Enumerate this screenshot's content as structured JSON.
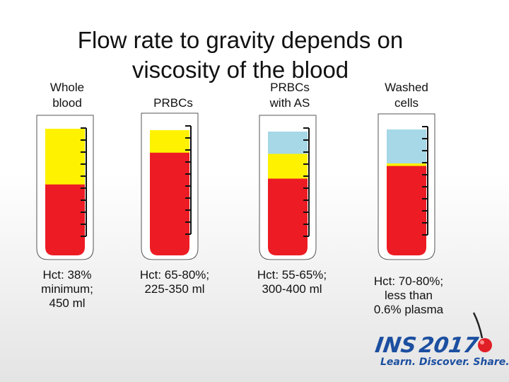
{
  "title_line1": "Flow rate to gravity depends on",
  "title_line2": "viscosity of the blood",
  "columns": [
    {
      "label_line1": "Whole",
      "label_line2": "blood",
      "caption": [
        "Hct: 38%",
        "minimum;",
        "450 ml"
      ],
      "layers": [
        {
          "name": "plasma",
          "fraction": 0.44
        },
        {
          "name": "red-cells",
          "fraction": 0.56
        }
      ]
    },
    {
      "label_line1": "PRBCs",
      "label_line2": "",
      "caption": [
        "Hct: 65-80%;",
        "225-350 ml"
      ],
      "layers": [
        {
          "name": "plasma",
          "fraction": 0.18
        },
        {
          "name": "red-cells",
          "fraction": 0.82
        }
      ]
    },
    {
      "label_line1": "PRBCs",
      "label_line2": "with AS",
      "caption": [
        "Hct: 55-65%;",
        "300-400 ml"
      ],
      "layers": [
        {
          "name": "additive-solution",
          "fraction": 0.18
        },
        {
          "name": "plasma",
          "fraction": 0.2
        },
        {
          "name": "red-cells",
          "fraction": 0.62
        }
      ]
    },
    {
      "label_line1": "Washed",
      "label_line2": "cells",
      "caption": [
        "Hct: 70-80%;",
        "less than",
        "0.6% plasma"
      ],
      "layers": [
        {
          "name": "saline",
          "fraction": 0.27
        },
        {
          "name": "plasma",
          "fraction": 0.02
        },
        {
          "name": "red-cells",
          "fraction": 0.71
        }
      ]
    }
  ],
  "colors": {
    "red-cells": "#ed1c24",
    "plasma": "#fff200",
    "additive-solution": "#a6d8e8",
    "saline": "#a6d8e8",
    "tube-fill": "#ffffff",
    "tube-outline": "#000000",
    "logo-blue": "#1c4fa0",
    "logo-red": "#e11f26"
  },
  "logo": {
    "name_text": "INS",
    "year_text": "2017",
    "tagline": "Learn. Discover. Share."
  }
}
